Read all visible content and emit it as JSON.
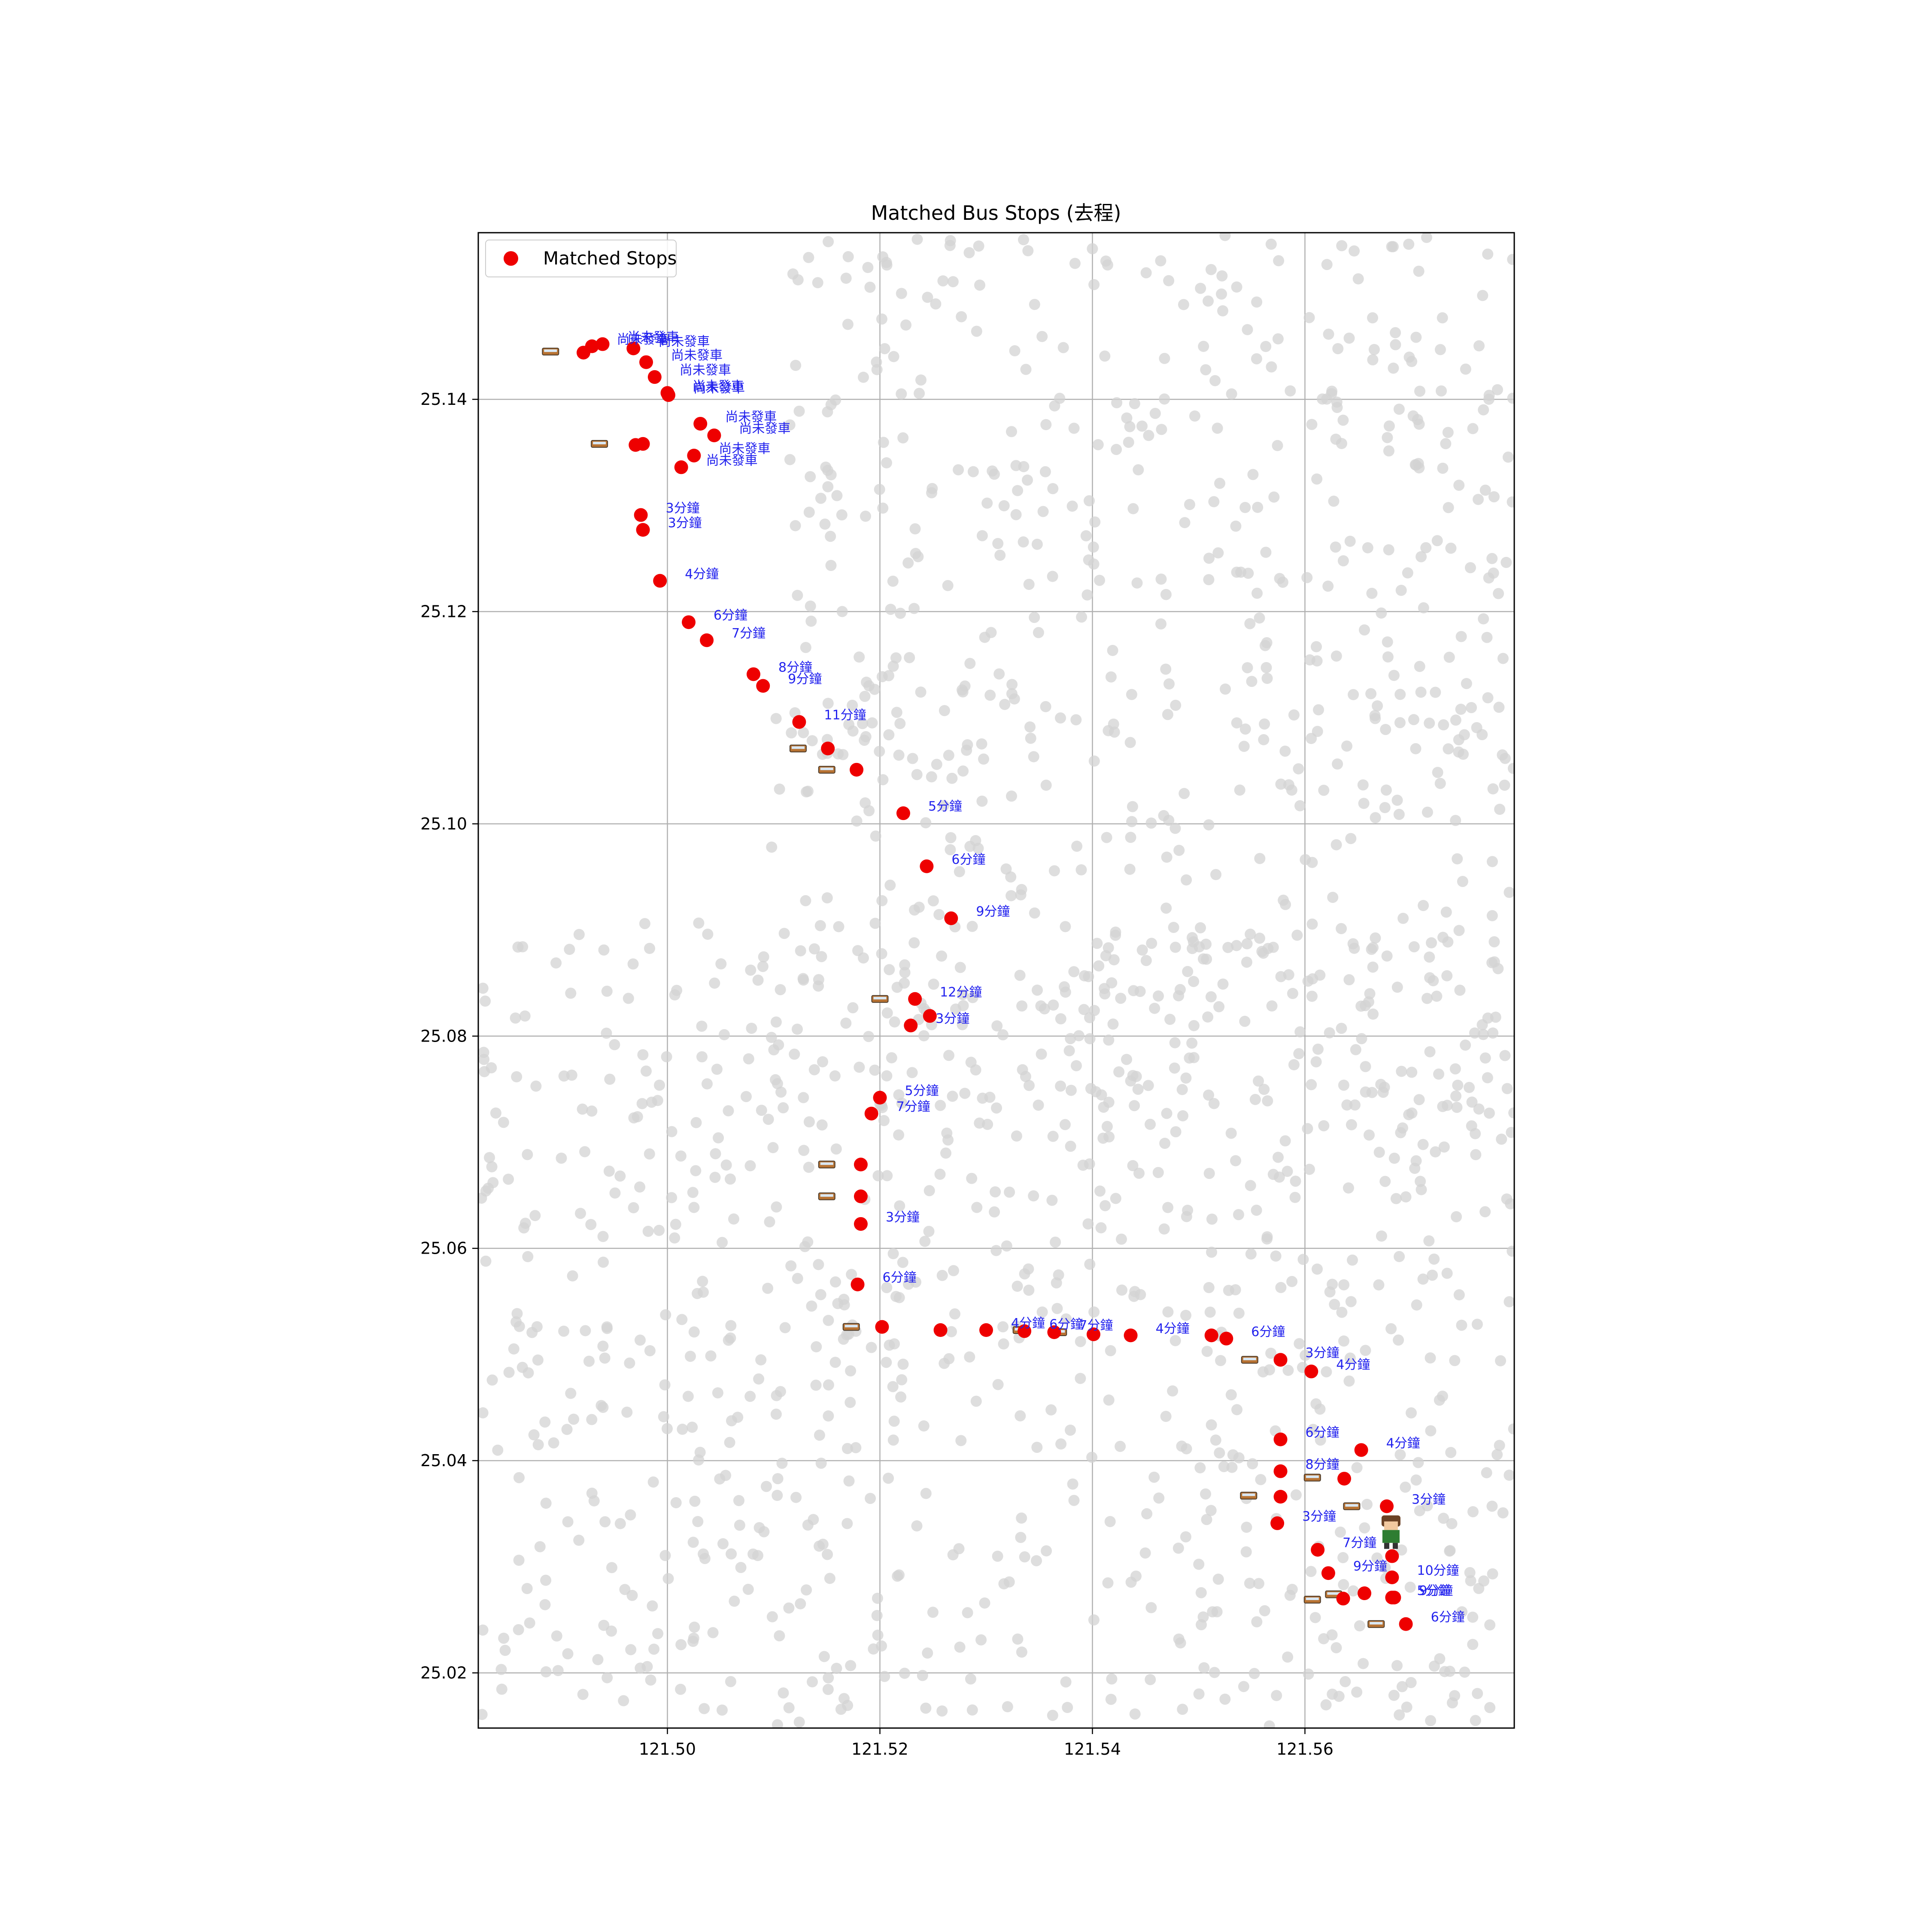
{
  "chart_data": {
    "type": "scatter",
    "title": "Matched Bus Stops (去程)",
    "xlabel": "",
    "ylabel": "",
    "xlim": [
      121.4822,
      121.5797
    ],
    "ylim": [
      25.0148,
      25.1557
    ],
    "xticks": [
      121.5,
      121.52,
      121.54,
      121.56
    ],
    "xtick_labels": [
      "121.50",
      "121.52",
      "121.54",
      "121.56"
    ],
    "yticks": [
      25.02,
      25.04,
      25.06,
      25.08,
      25.1,
      25.12,
      25.14
    ],
    "ytick_labels": [
      "25.02",
      "25.04",
      "25.06",
      "25.08",
      "25.10",
      "25.12",
      "25.14"
    ],
    "grid": true,
    "legend": {
      "position": "top-left",
      "entries": [
        "Matched Stops"
      ]
    },
    "colors": {
      "matched": "#ee0000",
      "background": "#d3d3d3",
      "labels": "#2222ee",
      "bus_body": "#b87333"
    },
    "series": [
      {
        "name": "Matched Stops",
        "color": "#ee0000",
        "points": [
          {
            "x": 121.4921,
            "y": 25.1444,
            "label": ""
          },
          {
            "x": 121.4929,
            "y": 25.145,
            "label": "尚未發車"
          },
          {
            "x": 121.4939,
            "y": 25.1452,
            "label": "尚未發車"
          },
          {
            "x": 121.4968,
            "y": 25.1448,
            "label": "尚未發車"
          },
          {
            "x": 121.498,
            "y": 25.1435,
            "label": "尚未發車"
          },
          {
            "x": 121.4988,
            "y": 25.1421,
            "label": "尚未發車"
          },
          {
            "x": 121.5,
            "y": 25.1406,
            "label": "尚未發車"
          },
          {
            "x": 121.5001,
            "y": 25.1404,
            "label": "尚未發車"
          },
          {
            "x": 121.5031,
            "y": 25.1377,
            "label": "尚未發車"
          },
          {
            "x": 121.5044,
            "y": 25.1366,
            "label": "尚未發車"
          },
          {
            "x": 121.497,
            "y": 25.1357,
            "label": ""
          },
          {
            "x": 121.4977,
            "y": 25.1358,
            "label": ""
          },
          {
            "x": 121.5025,
            "y": 25.1347,
            "label": "尚未發車"
          },
          {
            "x": 121.5013,
            "y": 25.1336,
            "label": "尚未發車"
          },
          {
            "x": 121.4975,
            "y": 25.1291,
            "label": "3分鐘"
          },
          {
            "x": 121.4977,
            "y": 25.1277,
            "label": "3分鐘"
          },
          {
            "x": 121.4993,
            "y": 25.1229,
            "label": "4分鐘"
          },
          {
            "x": 121.502,
            "y": 25.119,
            "label": "6分鐘"
          },
          {
            "x": 121.5037,
            "y": 25.1173,
            "label": "7分鐘"
          },
          {
            "x": 121.5081,
            "y": 25.1141,
            "label": "8分鐘"
          },
          {
            "x": 121.509,
            "y": 25.113,
            "label": "9分鐘"
          },
          {
            "x": 121.5124,
            "y": 25.1096,
            "label": "11分鐘"
          },
          {
            "x": 121.5151,
            "y": 25.1071,
            "label": ""
          },
          {
            "x": 121.5178,
            "y": 25.1051,
            "label": ""
          },
          {
            "x": 121.5222,
            "y": 25.101,
            "label": "5分鐘"
          },
          {
            "x": 121.5244,
            "y": 25.096,
            "label": "6分鐘"
          },
          {
            "x": 121.5267,
            "y": 25.0911,
            "label": "9分鐘"
          },
          {
            "x": 121.5233,
            "y": 25.0835,
            "label": "12分鐘"
          },
          {
            "x": 121.5247,
            "y": 25.0819,
            "label": ""
          },
          {
            "x": 121.5229,
            "y": 25.081,
            "label": "3分鐘"
          },
          {
            "x": 121.52,
            "y": 25.0742,
            "label": "5分鐘"
          },
          {
            "x": 121.5192,
            "y": 25.0727,
            "label": "7分鐘"
          },
          {
            "x": 121.5182,
            "y": 25.0679,
            "label": ""
          },
          {
            "x": 121.5182,
            "y": 25.0649,
            "label": ""
          },
          {
            "x": 121.5182,
            "y": 25.0623,
            "label": "3分鐘"
          },
          {
            "x": 121.5179,
            "y": 25.0566,
            "label": "6分鐘"
          },
          {
            "x": 121.5202,
            "y": 25.0526,
            "label": ""
          },
          {
            "x": 121.5257,
            "y": 25.0523,
            "label": ""
          },
          {
            "x": 121.53,
            "y": 25.0523,
            "label": "4分鐘"
          },
          {
            "x": 121.5336,
            "y": 25.0522,
            "label": "6分鐘"
          },
          {
            "x": 121.5364,
            "y": 25.0521,
            "label": "7分鐘"
          },
          {
            "x": 121.5401,
            "y": 25.0519,
            "label": ""
          },
          {
            "x": 121.5436,
            "y": 25.0518,
            "label": "4分鐘"
          },
          {
            "x": 121.5512,
            "y": 25.0518,
            "label": ""
          },
          {
            "x": 121.5526,
            "y": 25.0515,
            "label": "6分鐘"
          },
          {
            "x": 121.5577,
            "y": 25.0495,
            "label": "3分鐘"
          },
          {
            "x": 121.5606,
            "y": 25.0484,
            "label": "4分鐘"
          },
          {
            "x": 121.5577,
            "y": 25.042,
            "label": "6分鐘"
          },
          {
            "x": 121.5653,
            "y": 25.041,
            "label": "4分鐘"
          },
          {
            "x": 121.5577,
            "y": 25.039,
            "label": "8分鐘"
          },
          {
            "x": 121.5637,
            "y": 25.0383,
            "label": ""
          },
          {
            "x": 121.5577,
            "y": 25.0366,
            "label": ""
          },
          {
            "x": 121.5677,
            "y": 25.0357,
            "label": "3分鐘"
          },
          {
            "x": 121.5574,
            "y": 25.0341,
            "label": "3分鐘"
          },
          {
            "x": 121.5612,
            "y": 25.0316,
            "label": "7分鐘"
          },
          {
            "x": 121.5682,
            "y": 25.031,
            "label": ""
          },
          {
            "x": 121.5622,
            "y": 25.0294,
            "label": "9分鐘"
          },
          {
            "x": 121.5682,
            "y": 25.029,
            "label": "10分鐘"
          },
          {
            "x": 121.5656,
            "y": 25.0275,
            "label": ""
          },
          {
            "x": 121.5636,
            "y": 25.027,
            "label": ""
          },
          {
            "x": 121.5682,
            "y": 25.0271,
            "label": "5分鐘"
          },
          {
            "x": 121.5684,
            "y": 25.0271,
            "label": "9分鐘"
          },
          {
            "x": 121.5695,
            "y": 25.0246,
            "label": "6分鐘"
          }
        ]
      }
    ],
    "bus_markers": [
      {
        "x": 121.489,
        "y": 25.1445
      },
      {
        "x": 121.4936,
        "y": 25.1358
      },
      {
        "x": 121.5123,
        "y": 25.1071
      },
      {
        "x": 121.515,
        "y": 25.1051
      },
      {
        "x": 121.52,
        "y": 25.0835
      },
      {
        "x": 121.515,
        "y": 25.0679
      },
      {
        "x": 121.515,
        "y": 25.0649
      },
      {
        "x": 121.5173,
        "y": 25.0526
      },
      {
        "x": 121.5333,
        "y": 25.0523
      },
      {
        "x": 121.5368,
        "y": 25.0521
      },
      {
        "x": 121.5548,
        "y": 25.0495
      },
      {
        "x": 121.5607,
        "y": 25.0384
      },
      {
        "x": 121.5547,
        "y": 25.0367
      },
      {
        "x": 121.5644,
        "y": 25.0357
      },
      {
        "x": 121.5607,
        "y": 25.0269
      },
      {
        "x": 121.5627,
        "y": 25.0274
      },
      {
        "x": 121.5667,
        "y": 25.0246
      }
    ],
    "person_marker": {
      "x": 121.5681,
      "y": 25.0333
    }
  }
}
